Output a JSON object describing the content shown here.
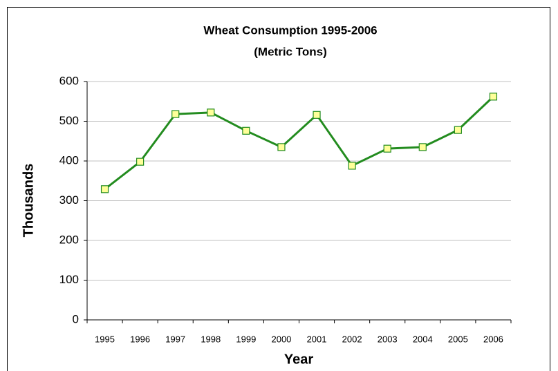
{
  "chart_data": {
    "type": "line",
    "title": "Wheat Consumption 1995-2006",
    "subtitle": "(Metric Tons)",
    "x_label": "Year",
    "y_label": "Thousands",
    "categories": [
      "1995",
      "1996",
      "1997",
      "1998",
      "1999",
      "2000",
      "2001",
      "2002",
      "2003",
      "2004",
      "2005",
      "2006"
    ],
    "series": [
      {
        "name": "Wheat Consumption",
        "color": "#238c1f",
        "marker_color": "#ffff99",
        "values": [
          329,
          398,
          518,
          522,
          476,
          435,
          516,
          388,
          431,
          435,
          478,
          562
        ]
      }
    ],
    "ylim": [
      0,
      600
    ],
    "yticks": [
      0,
      100,
      200,
      300,
      400,
      500,
      600
    ],
    "grid": true
  }
}
